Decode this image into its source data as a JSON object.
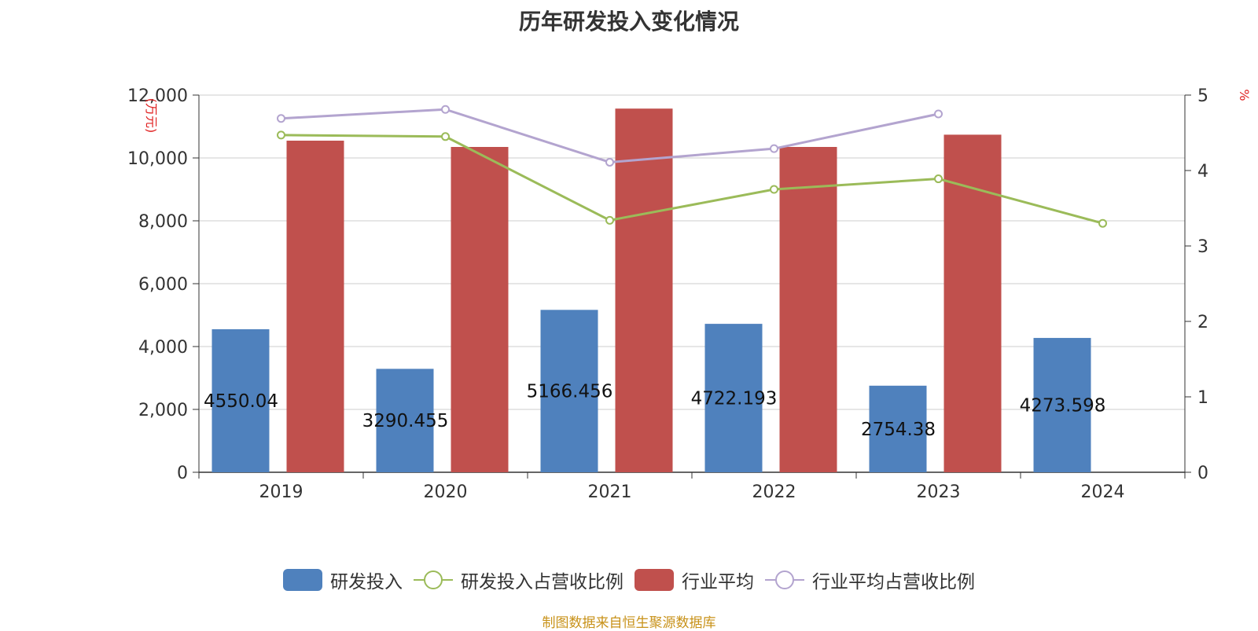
{
  "title": "历年研发投入变化情况",
  "source": "制图数据来自恒生聚源数据库",
  "colors": {
    "rd_bar": "#4f81bd",
    "industry_bar": "#c0504d",
    "rd_ratio_line": "#9bbb59",
    "industry_ratio_line": "#b3a4cf",
    "axis_unit": "#e02020"
  },
  "chart_data": {
    "type": "bar",
    "categories": [
      "2019",
      "2020",
      "2021",
      "2022",
      "2023",
      "2024"
    ],
    "y_left": {
      "label": "(万元)",
      "ylim": [
        0,
        12000
      ],
      "ticks": [
        0,
        2000,
        4000,
        6000,
        8000,
        10000,
        12000
      ],
      "tick_labels": [
        "0",
        "2,000",
        "4,000",
        "6,000",
        "8,000",
        "10,000",
        "12,000"
      ]
    },
    "y_right": {
      "label": "%",
      "ylim": [
        0,
        5
      ],
      "ticks": [
        0,
        1,
        2,
        3,
        4,
        5
      ]
    },
    "grid": true,
    "legend_position": "bottom",
    "series": [
      {
        "name": "研发投入",
        "type": "bar",
        "axis": "left",
        "values": [
          4550.04,
          3290.455,
          5166.456,
          4722.193,
          2754.38,
          4273.598
        ],
        "data_labels": [
          "4550.04",
          "3290.455",
          "5166.456",
          "4722.193",
          "2754.38",
          "4273.598"
        ]
      },
      {
        "name": "研发投入占营收比例",
        "type": "line",
        "axis": "right",
        "values": [
          4.47,
          4.45,
          3.34,
          3.75,
          3.89,
          3.3
        ]
      },
      {
        "name": "行业平均",
        "type": "bar",
        "axis": "left",
        "values": [
          10550,
          10350,
          11570,
          10350,
          10740,
          null
        ]
      },
      {
        "name": "行业平均占营收比例",
        "type": "line",
        "axis": "right",
        "values": [
          4.69,
          4.81,
          4.11,
          4.29,
          4.75,
          null
        ]
      }
    ]
  }
}
